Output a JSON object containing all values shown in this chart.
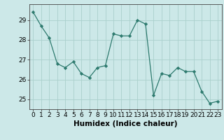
{
  "x": [
    0,
    1,
    2,
    3,
    4,
    5,
    6,
    7,
    8,
    9,
    10,
    11,
    12,
    13,
    14,
    15,
    16,
    17,
    18,
    19,
    20,
    21,
    22,
    23
  ],
  "y": [
    29.4,
    28.7,
    28.1,
    26.8,
    26.6,
    26.9,
    26.3,
    26.1,
    26.6,
    26.7,
    28.3,
    28.2,
    28.2,
    29.0,
    28.8,
    25.2,
    26.3,
    26.2,
    26.6,
    26.4,
    26.4,
    25.4,
    24.8,
    24.9
  ],
  "line_color": "#2d7a6e",
  "marker_color": "#2d7a6e",
  "bg_color": "#cce8e8",
  "grid_color": "#aad0cc",
  "xlabel": "Humidex (Indice chaleur)",
  "ylim": [
    24.5,
    29.8
  ],
  "xlim": [
    -0.5,
    23.5
  ],
  "yticks": [
    25,
    26,
    27,
    28,
    29
  ],
  "xticks": [
    0,
    1,
    2,
    3,
    4,
    5,
    6,
    7,
    8,
    9,
    10,
    11,
    12,
    13,
    14,
    15,
    16,
    17,
    18,
    19,
    20,
    21,
    22,
    23
  ],
  "tick_fontsize": 6.5,
  "label_fontsize": 7.5
}
